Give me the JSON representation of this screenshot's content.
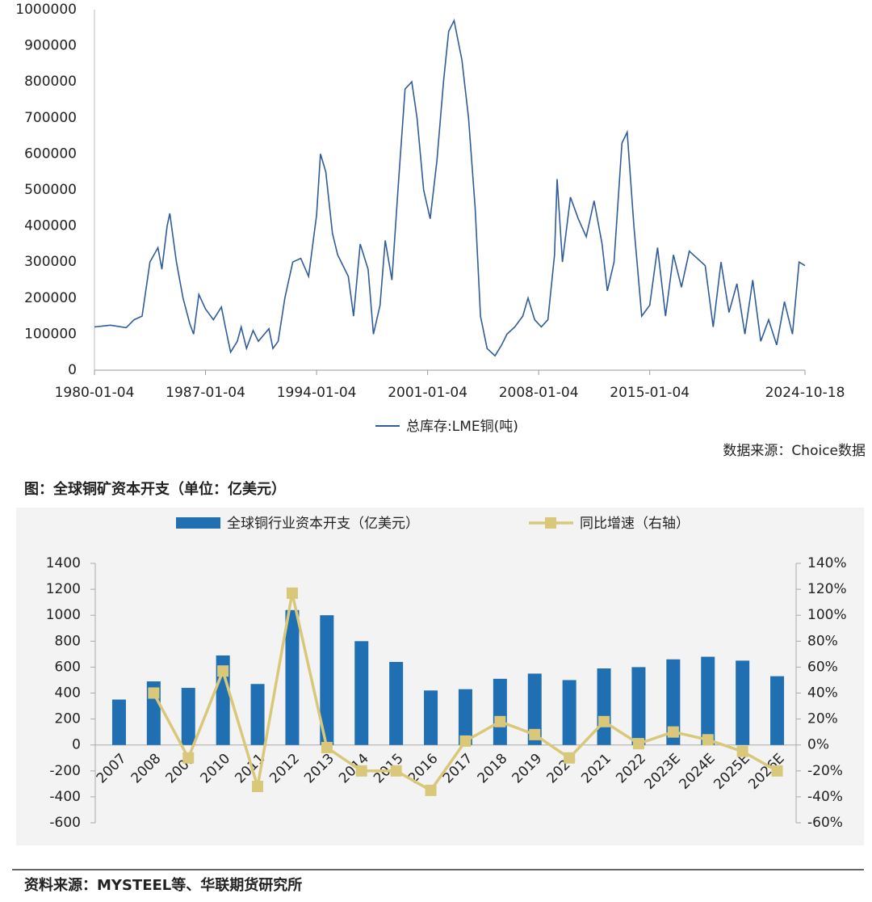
{
  "chart_data": [
    {
      "type": "line",
      "xlim": [
        "1980-01-04",
        "2024-10-18"
      ],
      "xticks": [
        "1980-01-04",
        "1987-01-04",
        "1994-01-04",
        "2001-01-04",
        "2008-01-04",
        "2015-01-04",
        "2024-10-18"
      ],
      "ylim": [
        0,
        1000000
      ],
      "yticks": [
        0,
        100000,
        200000,
        300000,
        400000,
        500000,
        600000,
        700000,
        800000,
        900000,
        1000000
      ],
      "note": "数据来源：Choice数据",
      "x": [
        "1980-01-04",
        "1981-01-04",
        "1982-01-04",
        "1982-07-04",
        "1983-01-04",
        "1983-07-04",
        "1984-01-04",
        "1984-04-04",
        "1984-08-04",
        "1984-10-04",
        "1985-03-04",
        "1985-08-04",
        "1986-01-04",
        "1986-04-04",
        "1986-08-04",
        "1987-01-04",
        "1987-07-04",
        "1988-01-04",
        "1988-04-04",
        "1988-08-04",
        "1989-01-04",
        "1989-04-04",
        "1989-08-04",
        "1990-01-04",
        "1990-05-04",
        "1991-01-04",
        "1991-04-04",
        "1991-08-04",
        "1992-01-04",
        "1992-07-04",
        "1993-01-04",
        "1993-07-04",
        "1994-01-04",
        "1994-04-04",
        "1994-08-04",
        "1995-01-04",
        "1995-05-04",
        "1996-01-04",
        "1996-05-04",
        "1996-10-04",
        "1997-04-04",
        "1997-08-04",
        "1998-01-04",
        "1998-05-04",
        "1998-10-04",
        "1999-03-04",
        "1999-08-04",
        "2000-01-04",
        "2000-05-04",
        "2000-10-04",
        "2001-03-04",
        "2001-08-04",
        "2002-01-04",
        "2002-05-04",
        "2002-09-04",
        "2003-03-04",
        "2003-08-04",
        "2004-01-04",
        "2004-05-04",
        "2004-10-04",
        "2005-04-04",
        "2005-09-04",
        "2006-01-04",
        "2006-07-04",
        "2007-01-04",
        "2007-05-04",
        "2007-10-04",
        "2008-03-04",
        "2008-08-04",
        "2009-01-04",
        "2009-03-04",
        "2009-07-04",
        "2010-01-04",
        "2010-07-04",
        "2011-01-04",
        "2011-07-04",
        "2012-01-04",
        "2012-05-04",
        "2012-10-04",
        "2013-04-04",
        "2013-08-04",
        "2014-01-04",
        "2014-07-04",
        "2015-01-04",
        "2015-07-04",
        "2016-01-04",
        "2016-07-04",
        "2017-01-04",
        "2017-07-04",
        "2018-01-04",
        "2018-07-04",
        "2019-01-04",
        "2019-07-04",
        "2020-01-04",
        "2020-07-04",
        "2021-01-04",
        "2021-07-04",
        "2022-01-04",
        "2022-07-04",
        "2023-01-04",
        "2023-07-04",
        "2024-01-04",
        "2024-06-04",
        "2024-10-18"
      ],
      "series": [
        {
          "name": "总库存:LME铜(吨)",
          "color": "#2f5c9a",
          "values": [
            120000,
            125000,
            118000,
            140000,
            150000,
            300000,
            340000,
            280000,
            400000,
            435000,
            300000,
            200000,
            130000,
            100000,
            210000,
            170000,
            140000,
            175000,
            120000,
            50000,
            80000,
            120000,
            60000,
            110000,
            80000,
            115000,
            60000,
            80000,
            200000,
            300000,
            310000,
            260000,
            430000,
            600000,
            550000,
            380000,
            320000,
            260000,
            150000,
            350000,
            280000,
            100000,
            180000,
            360000,
            250000,
            520000,
            780000,
            800000,
            700000,
            500000,
            420000,
            580000,
            800000,
            940000,
            970000,
            860000,
            700000,
            450000,
            150000,
            60000,
            40000,
            70000,
            100000,
            120000,
            150000,
            200000,
            140000,
            120000,
            140000,
            320000,
            530000,
            300000,
            480000,
            420000,
            370000,
            470000,
            350000,
            220000,
            300000,
            630000,
            660000,
            400000,
            150000,
            180000,
            340000,
            150000,
            320000,
            230000,
            330000,
            310000,
            290000,
            120000,
            300000,
            160000,
            240000,
            100000,
            250000,
            80000,
            140000,
            70000,
            190000,
            100000,
            300000,
            290000
          ]
        }
      ]
    },
    {
      "type": "bar",
      "title": "图：全球铜矿资本开支（单位：亿美元）",
      "note": "资料来源：MYSTEEL等、华联期货研究所",
      "categories": [
        "2007",
        "2008",
        "2009",
        "2010",
        "2011",
        "2012",
        "2013",
        "2014",
        "2015",
        "2016",
        "2017",
        "2018",
        "2019",
        "2020",
        "2021",
        "2022",
        "2023E",
        "2024E",
        "2025E",
        "2026E"
      ],
      "ylim": [
        -600,
        1400
      ],
      "yticks": [
        -600,
        -400,
        -200,
        0,
        200,
        400,
        600,
        800,
        1000,
        1200,
        1400
      ],
      "y2lim": [
        -60,
        140
      ],
      "y2ticks": [
        {
          "value": -60,
          "label": "-60%"
        },
        {
          "value": -40,
          "label": "-40%"
        },
        {
          "value": -20,
          "label": "-20%"
        },
        {
          "value": 0,
          "label": "0%"
        },
        {
          "value": 20,
          "label": "20%"
        },
        {
          "value": 40,
          "label": "40%"
        },
        {
          "value": 60,
          "label": "60%"
        },
        {
          "value": 80,
          "label": "80%"
        },
        {
          "value": 100,
          "label": "100%"
        },
        {
          "value": 120,
          "label": "120%"
        },
        {
          "value": 140,
          "label": "140%"
        }
      ],
      "series": [
        {
          "name": "全球铜行业资本开支（亿美元）",
          "color": "#1f6fb2",
          "values": [
            350,
            490,
            440,
            690,
            470,
            1040,
            1000,
            800,
            640,
            420,
            430,
            510,
            550,
            500,
            590,
            600,
            660,
            680,
            650,
            530
          ]
        },
        {
          "name": "同比增速（右轴）",
          "color": "#d9c87a",
          "axis": "y2",
          "values": [
            null,
            40,
            -10,
            57,
            -32,
            117,
            -2,
            -20,
            -20,
            -35,
            3,
            18,
            8,
            -10,
            18,
            1,
            10,
            4,
            -5,
            -20
          ]
        }
      ]
    }
  ]
}
